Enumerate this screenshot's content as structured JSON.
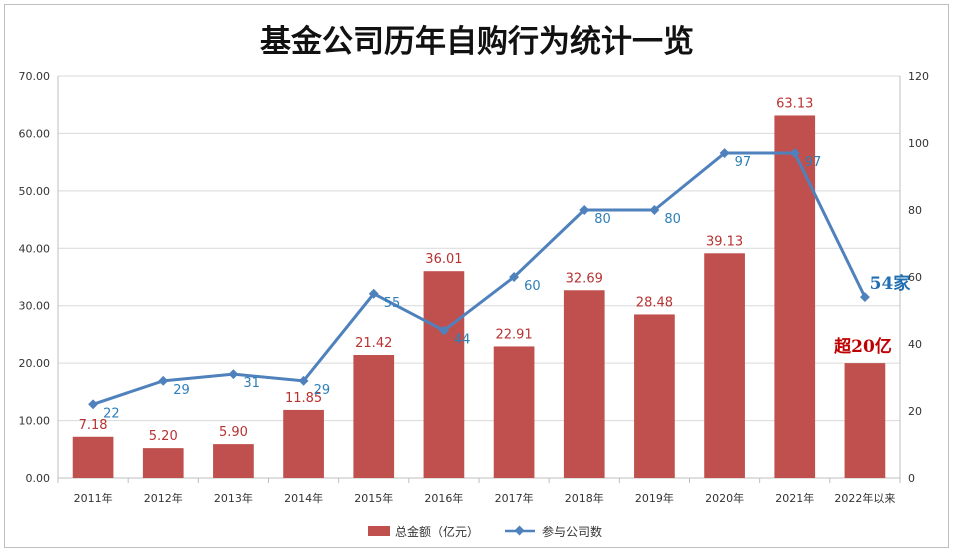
{
  "chart_data": {
    "type": "bar",
    "title": "基金公司历年自购行为统计一览",
    "categories": [
      "2011年",
      "2012年",
      "2013年",
      "2014年",
      "2015年",
      "2016年",
      "2017年",
      "2018年",
      "2019年",
      "2020年",
      "2021年",
      "2022年以来"
    ],
    "series": [
      {
        "name": "总金额（亿元）",
        "type": "bar",
        "axis": "left",
        "color": "#c0504d",
        "values": [
          7.18,
          5.2,
          5.9,
          11.85,
          21.42,
          36.01,
          22.91,
          32.69,
          28.48,
          39.13,
          63.13,
          20
        ],
        "labels": [
          "7.18",
          "5.20",
          "5.90",
          "11.85",
          "21.42",
          "36.01",
          "22.91",
          "32.69",
          "28.48",
          "39.13",
          "63.13",
          ""
        ]
      },
      {
        "name": "参与公司数",
        "type": "line",
        "axis": "right",
        "color": "#4f81bd",
        "values": [
          22,
          29,
          31,
          29,
          55,
          44,
          60,
          80,
          80,
          97,
          97,
          54
        ],
        "labels": [
          "22",
          "29",
          "31",
          "29",
          "55",
          "44",
          "60",
          "80",
          "80",
          "97",
          "97",
          ""
        ]
      }
    ],
    "y_left": {
      "min": 0,
      "max": 70,
      "step": 10,
      "ticks": [
        "0.00",
        "10.00",
        "20.00",
        "30.00",
        "40.00",
        "50.00",
        "60.00",
        "70.00"
      ]
    },
    "y_right": {
      "min": 0,
      "max": 120,
      "step": 20,
      "ticks": [
        "0",
        "20",
        "40",
        "60",
        "80",
        "100",
        "120"
      ]
    },
    "grid": true,
    "legend_position": "bottom",
    "annotations": {
      "bar_last": "超20亿",
      "line_last": "54家"
    }
  }
}
